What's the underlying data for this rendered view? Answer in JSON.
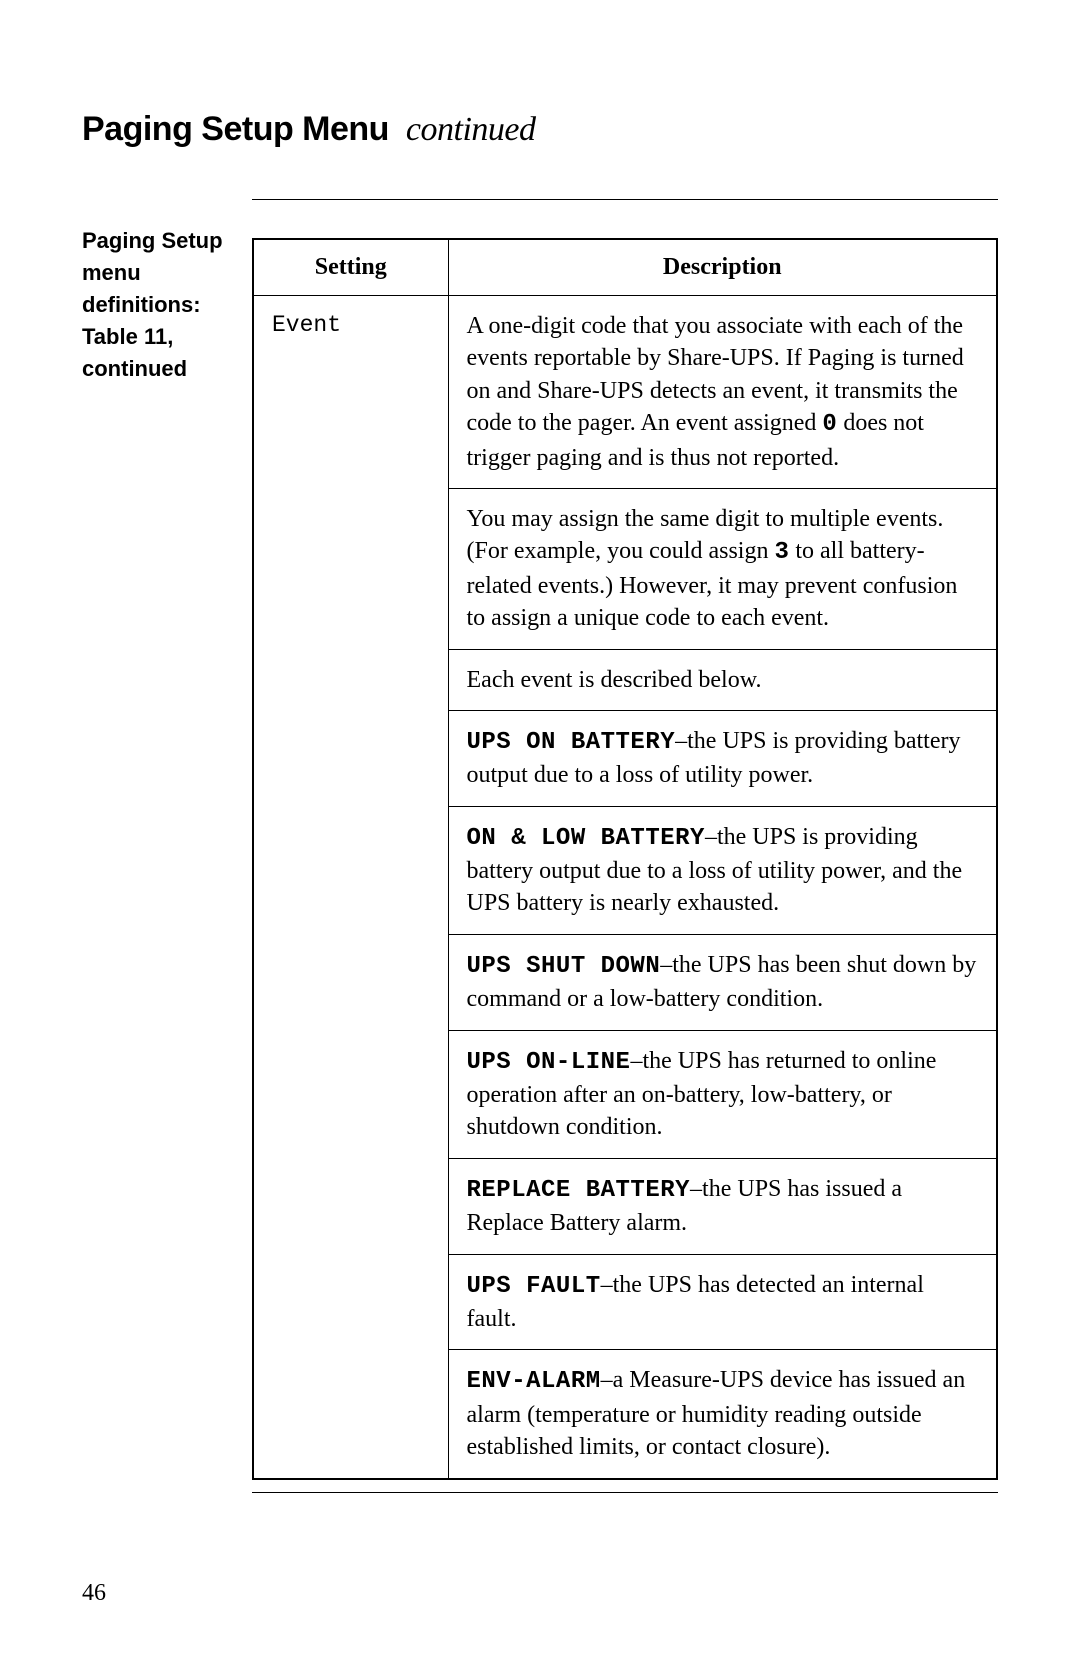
{
  "title_main": "Paging Setup Menu",
  "title_cont": "continued",
  "sidebar_text": "Paging Setup menu definitions: Table 11, continued",
  "headers": {
    "setting": "Setting",
    "description": "Description"
  },
  "row": {
    "setting": "Event",
    "blocks": [
      {
        "type": "html",
        "html": "A one-digit code that you associate with each of the events reportable by Share-UPS. If Paging is turned on and Share-UPS detects an event, it transmits the code to the pager. An event assigned <span class=\"mono-b\">0</span> does not trigger paging and is thus not reported."
      },
      {
        "type": "html",
        "html": "You may assign the same digit to multiple events. (For example, you could assign <span class=\"mono-b\">3</span> to all battery-related events.) However, it may prevent confusion to assign a unique code to each event."
      },
      {
        "type": "text",
        "text": "Each event is described below."
      },
      {
        "type": "html",
        "html": "<span class=\"mono-b\">UPS ON BATTERY</span>–the UPS is providing battery output due to a loss of utility power."
      },
      {
        "type": "html",
        "html": "<span class=\"mono-b\">ON &amp; LOW BATTERY</span>–the UPS is providing battery output due to a loss of utility power, and the UPS battery is nearly exhausted."
      },
      {
        "type": "html",
        "html": "<span class=\"mono-b\">UPS SHUT DOWN</span>–the UPS has been shut down by command or a low-battery condition."
      },
      {
        "type": "html",
        "html": "<span class=\"mono-b\">UPS ON-LINE</span>–the UPS has returned to online operation after an on-battery, low-battery, or shutdown condition."
      },
      {
        "type": "html",
        "html": "<span class=\"mono-b\">REPLACE BATTERY</span>–the UPS has issued a Replace Battery alarm."
      },
      {
        "type": "html",
        "html": "<span class=\"mono-b\">UPS FAULT</span>–the UPS has detected an internal fault."
      },
      {
        "type": "html",
        "html": "<span class=\"mono-b\">ENV-ALARM</span>–a Measure-UPS device has issued an alarm (temperature or humidity reading outside established limits, or contact closure)."
      }
    ]
  },
  "page_number": "46"
}
